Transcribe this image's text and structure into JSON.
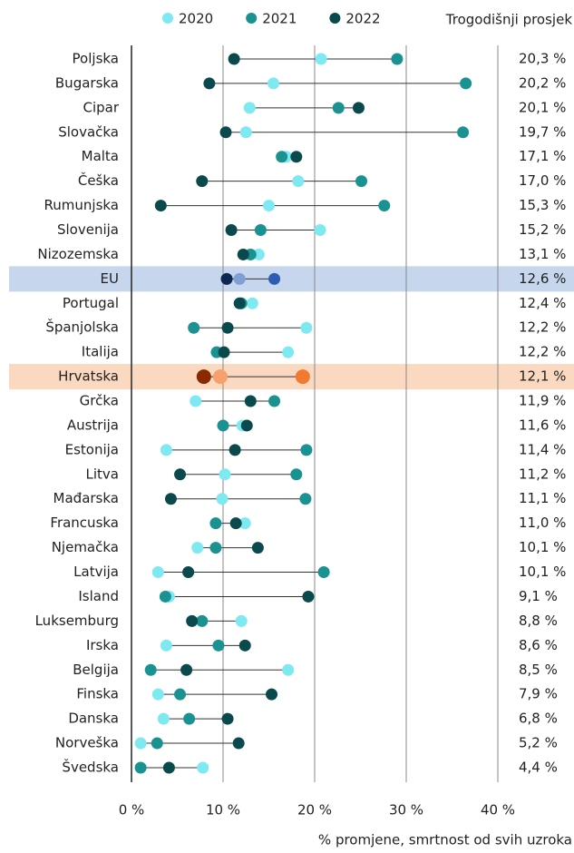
{
  "chart_data": {
    "type": "dot",
    "x_label": "% promjene, smrtnost od svih uzroka",
    "categories": [
      "Poljska",
      "Bugarska",
      "Cipar",
      "Slovačka",
      "Malta",
      "Češka",
      "Rumunjska",
      "Slovenija",
      "Nizozemska",
      "EU",
      "Portugal",
      "Španjolska",
      "Italija",
      "Hrvatska",
      "Grčka",
      "Austrija",
      "Estonija",
      "Litva",
      "Mađarska",
      "Francuska",
      "Njemačka",
      "Latvija",
      "Island",
      "Luksemburg",
      "Irska",
      "Belgija",
      "Finska",
      "Danska",
      "Norveška",
      "Švedska"
    ],
    "series": [
      {
        "name": "2020",
        "color": "#7fe9f2",
        "values": [
          20.7,
          15.5,
          12.9,
          12.5,
          16.9,
          18.2,
          15.0,
          20.6,
          13.9,
          11.8,
          13.2,
          19.1,
          17.1,
          9.7,
          7.0,
          12.1,
          3.8,
          10.2,
          9.9,
          12.4,
          7.2,
          2.9,
          4.1,
          12.0,
          3.8,
          17.1,
          2.9,
          3.5,
          1.0,
          7.8
        ]
      },
      {
        "name": "2021",
        "color": "#1a9292",
        "values": [
          29.0,
          36.5,
          22.6,
          36.2,
          16.4,
          25.1,
          27.6,
          14.1,
          13.0,
          15.6,
          12.0,
          6.8,
          9.3,
          18.7,
          15.6,
          10.0,
          19.1,
          18.0,
          19.0,
          9.2,
          9.2,
          21.0,
          3.7,
          7.7,
          9.5,
          2.1,
          5.3,
          6.3,
          2.8,
          1.0
        ]
      },
      {
        "name": "2022",
        "color": "#0b4a4c",
        "values": [
          11.2,
          8.5,
          24.8,
          10.3,
          18.0,
          7.7,
          3.2,
          10.9,
          12.2,
          10.4,
          11.8,
          10.5,
          10.1,
          7.9,
          13.0,
          12.6,
          11.3,
          5.3,
          4.3,
          11.4,
          13.8,
          6.2,
          19.3,
          6.6,
          12.4,
          6.0,
          15.3,
          10.5,
          11.7,
          4.1
        ]
      }
    ],
    "average": {
      "name": "Trogodišnji prosjek",
      "values": [
        20.3,
        20.2,
        20.1,
        19.7,
        17.1,
        17.0,
        15.3,
        15.2,
        13.1,
        12.6,
        12.4,
        12.2,
        12.2,
        12.1,
        11.9,
        11.6,
        11.4,
        11.2,
        11.1,
        11.0,
        10.1,
        10.1,
        9.1,
        8.8,
        8.6,
        8.5,
        7.9,
        6.8,
        5.2,
        4.4
      ],
      "value_labels": [
        "20,3 %",
        "20,2 %",
        "20,1 %",
        "19,7 %",
        "17,1 %",
        "17,0 %",
        "15,3 %",
        "15,2 %",
        "13,1 %",
        "12,6 %",
        "12,4 %",
        "12,2 %",
        "12,2 %",
        "12,1 %",
        "11,9 %",
        "11,6 %",
        "11,4 %",
        "11,2 %",
        "11,1 %",
        "11,0 %",
        "10,1 %",
        "10,1 %",
        "9,1 %",
        "8,8 %",
        "8,6 %",
        "8,5 %",
        "7,9 %",
        "6,8 %",
        "5,2 %",
        "4,4 %"
      ]
    },
    "highlights": [
      {
        "category": "EU",
        "band": "#c6d6ec",
        "colors": [
          "#7f9fd6",
          "#2c5db2",
          "#0d2752"
        ]
      },
      {
        "category": "Hrvatska",
        "band": "#fbd8c0",
        "colors": [
          "#f6a06c",
          "#f07a30",
          "#8a2a00"
        ]
      }
    ],
    "xlim": [
      0,
      40
    ],
    "xticks": [
      {
        "value": 0,
        "label": "0 %"
      },
      {
        "value": 10,
        "label": "10 %"
      },
      {
        "value": 20,
        "label": "20 %"
      },
      {
        "value": 30,
        "label": "30 %"
      },
      {
        "value": 40,
        "label": "40 %"
      }
    ],
    "grid": true
  }
}
